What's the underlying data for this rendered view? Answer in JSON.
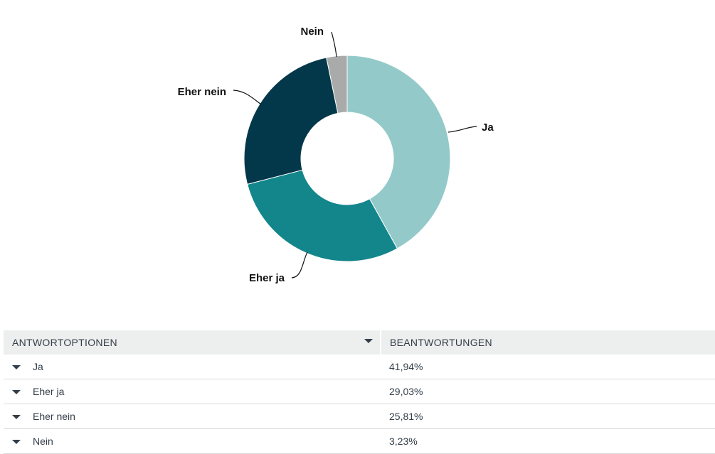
{
  "chart_data": {
    "type": "pie",
    "categories": [
      "Ja",
      "Eher ja",
      "Eher nein",
      "Nein"
    ],
    "values": [
      41.94,
      29.03,
      25.81,
      3.23
    ],
    "colors": [
      "#93c9c9",
      "#12868b",
      "#03384a",
      "#a9aaaa"
    ]
  },
  "table": {
    "headers": {
      "options": "ANTWORTOPTIONEN",
      "responses": "BEANTWORTUNGEN"
    },
    "rows": [
      {
        "option": "Ja",
        "percent": "41,94%"
      },
      {
        "option": "Eher ja",
        "percent": "29,03%"
      },
      {
        "option": "Eher nein",
        "percent": "25,81%"
      },
      {
        "option": "Nein",
        "percent": "3,23%"
      }
    ]
  }
}
